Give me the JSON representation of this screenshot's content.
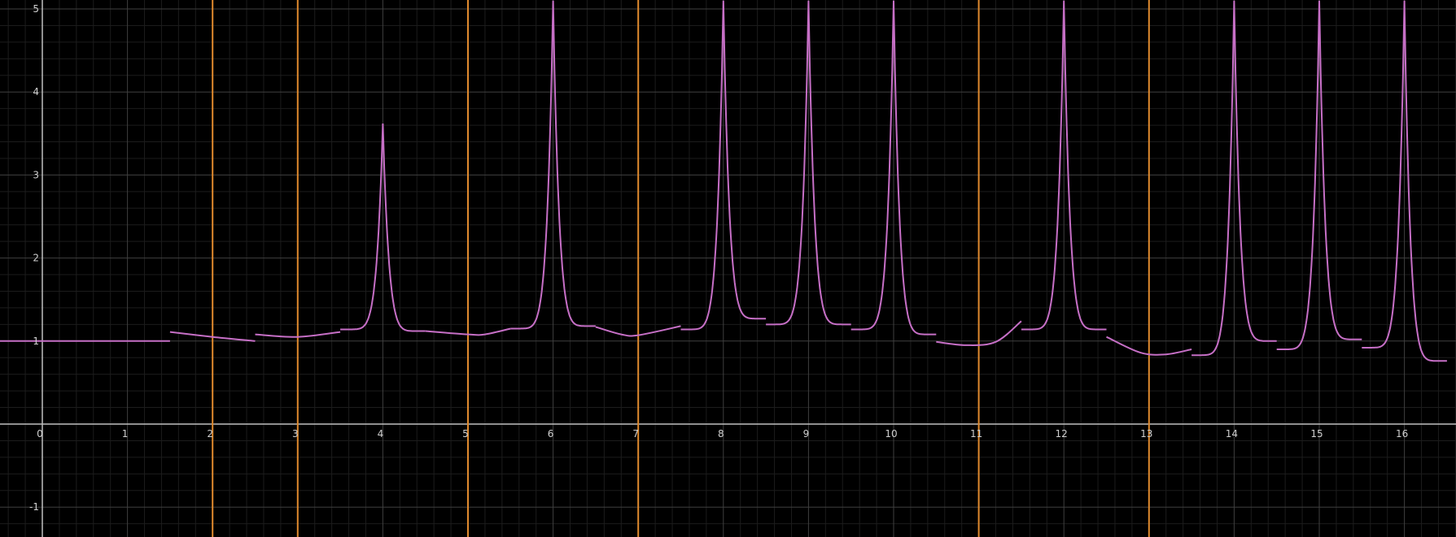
{
  "chart_data": {
    "type": "line",
    "title": "",
    "xlabel": "",
    "ylabel": "",
    "xlim": [
      -0.5,
      16.55
    ],
    "ylim": [
      -1.35,
      5.1
    ],
    "grid": true,
    "x_ticks": [
      "0",
      "1",
      "2",
      "3",
      "4",
      "5",
      "6",
      "7",
      "8",
      "9",
      "10",
      "11",
      "12",
      "13",
      "14",
      "15",
      "16"
    ],
    "y_ticks": [
      "-1",
      "1",
      "2",
      "3",
      "4",
      "5"
    ],
    "vertical_lines": {
      "color": "#e08a2e",
      "x": [
        2,
        3,
        5,
        7,
        11,
        13
      ]
    },
    "series": [
      {
        "color": "#c66fc6",
        "pieces": [
          {
            "x": [
              -0.5,
              0,
              0.5,
              1,
              1.5
            ],
            "y": [
              1,
              1,
              1,
              1,
              1
            ]
          },
          {
            "x": [
              1.5,
              2,
              2.5
            ],
            "y": [
              1.11,
              1.05,
              1.0
            ]
          },
          {
            "x": [
              2.5,
              3,
              3.5
            ],
            "y": [
              1.08,
              1.05,
              1.11
            ]
          },
          {
            "peak": 4,
            "y_left": 1.14,
            "y_right": 1.12,
            "y_top": 3.62,
            "x_start": 3.5,
            "x_end": 4.5
          },
          {
            "x": [
              4.5,
              5,
              5.2,
              5.5
            ],
            "y": [
              1.12,
              1.08,
              1.08,
              1.15
            ]
          },
          {
            "peak": 6,
            "y_left": 1.15,
            "y_right": 1.18,
            "y_top": 5.1,
            "x_start": 5.5,
            "x_end": 6.5
          },
          {
            "x": [
              6.5,
              6.8,
              7,
              7.5
            ],
            "y": [
              1.17,
              1.08,
              1.07,
              1.18
            ]
          },
          {
            "peak": 8,
            "y_left": 1.14,
            "y_right": 1.27,
            "y_top": 5.1,
            "x_start": 7.5,
            "x_end": 8.5
          },
          {
            "peak": 9,
            "y_left": 1.2,
            "y_right": 1.2,
            "y_top": 5.1,
            "x_start": 8.5,
            "x_end": 9.5
          },
          {
            "peak": 10,
            "y_left": 1.14,
            "y_right": 1.08,
            "y_top": 5.1,
            "x_start": 9.5,
            "x_end": 10.5
          },
          {
            "x": [
              10.5,
              10.85,
              11.2,
              11.5
            ],
            "y": [
              0.99,
              0.95,
              0.99,
              1.24
            ]
          },
          {
            "peak": 12,
            "y_left": 1.14,
            "y_right": 1.14,
            "y_top": 5.1,
            "x_start": 11.5,
            "x_end": 12.5
          },
          {
            "x": [
              12.5,
              12.9,
              13.2,
              13.5
            ],
            "y": [
              1.05,
              0.86,
              0.84,
              0.9
            ]
          },
          {
            "peak": 14,
            "y_left": 0.83,
            "y_right": 1.0,
            "y_top": 5.1,
            "x_start": 13.5,
            "x_end": 14.5
          },
          {
            "peak": 15,
            "y_left": 0.9,
            "y_right": 1.02,
            "y_top": 5.1,
            "x_start": 14.5,
            "x_end": 15.5
          },
          {
            "peak": 16,
            "y_left": 0.92,
            "y_right": 0.76,
            "y_top": 5.1,
            "x_start": 15.5,
            "x_end": 16.5
          }
        ]
      }
    ]
  },
  "colors": {
    "background": "#000000",
    "minor_grid": "#1c1c1c",
    "major_grid": "#3f3f3f",
    "axis": "#bfbfbf",
    "curve": "#c66fc6",
    "vline": "#e08a2e"
  }
}
